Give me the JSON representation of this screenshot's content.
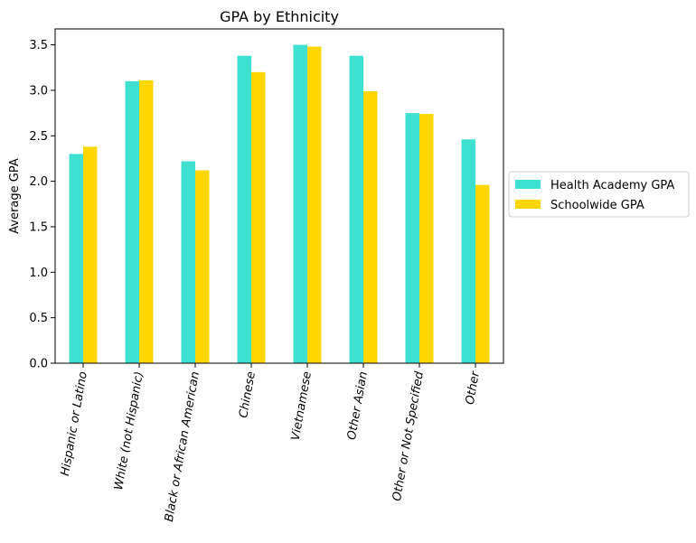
{
  "chart_data": {
    "type": "bar",
    "title": "GPA by Ethnicity",
    "xlabel": "",
    "ylabel": "Average GPA",
    "ylim": [
      0,
      3.675
    ],
    "yticks": [
      0.0,
      0.5,
      1.0,
      1.5,
      2.0,
      2.5,
      3.0,
      3.5
    ],
    "ytick_labels": [
      "0.0",
      "0.5",
      "1.0",
      "1.5",
      "2.0",
      "2.5",
      "3.0",
      "3.5"
    ],
    "categories": [
      "Hispanic or Latino",
      "White (not Hispanic)",
      "Black or African American",
      "Chinese",
      "Vietnamese",
      "Other Asian",
      "Other or Not Specified",
      "Other"
    ],
    "series": [
      {
        "name": "Health Academy GPA",
        "color": "#40E0D0",
        "values": [
          2.3,
          3.1,
          2.22,
          3.38,
          3.5,
          3.38,
          2.75,
          2.46
        ]
      },
      {
        "name": "Schoolwide GPA",
        "color": "#FFD700",
        "values": [
          2.38,
          3.11,
          2.12,
          3.2,
          3.48,
          2.99,
          2.74,
          1.96
        ]
      }
    ],
    "grid": false,
    "legend_position": "center-right outside"
  }
}
